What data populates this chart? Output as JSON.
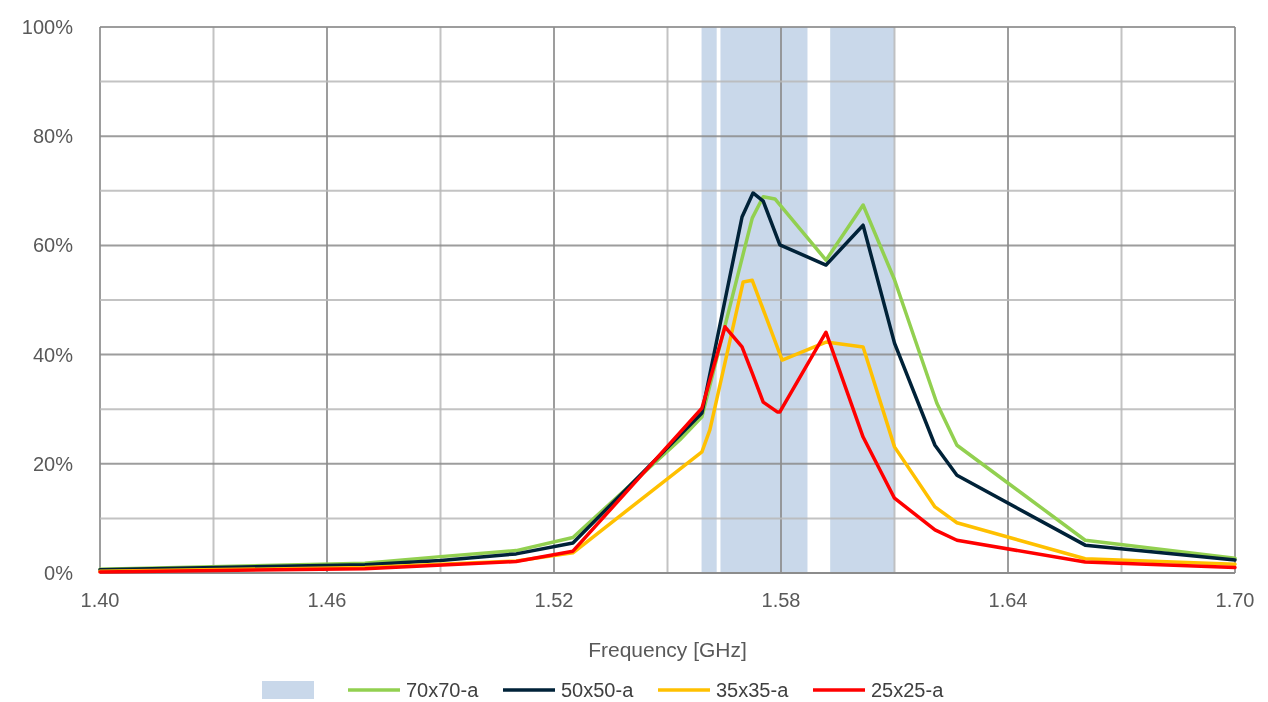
{
  "chart_data": {
    "type": "line",
    "xlabel": "Frequency [GHz]",
    "xlim": [
      1.4,
      1.7
    ],
    "xticks": [
      {
        "value": 1.4,
        "label": "1.40"
      },
      {
        "value": 1.43,
        "label": null
      },
      {
        "value": 1.46,
        "label": "1.46"
      },
      {
        "value": 1.49,
        "label": null
      },
      {
        "value": 1.52,
        "label": "1.52"
      },
      {
        "value": 1.55,
        "label": null
      },
      {
        "value": 1.58,
        "label": "1.58"
      },
      {
        "value": 1.61,
        "label": null
      },
      {
        "value": 1.64,
        "label": "1.64"
      },
      {
        "value": 1.67,
        "label": null
      },
      {
        "value": 1.7,
        "label": "1.70"
      }
    ],
    "ylim": [
      0,
      100
    ],
    "yticks": [
      {
        "value": 0,
        "label": "0%"
      },
      {
        "value": 10,
        "label": null
      },
      {
        "value": 20,
        "label": "20%"
      },
      {
        "value": 30,
        "label": null
      },
      {
        "value": 40,
        "label": "40%"
      },
      {
        "value": 50,
        "label": null
      },
      {
        "value": 60,
        "label": "60%"
      },
      {
        "value": 70,
        "label": null
      },
      {
        "value": 80,
        "label": "80%"
      },
      {
        "value": 90,
        "label": null
      },
      {
        "value": 100,
        "label": "100%"
      }
    ],
    "grid": true,
    "legend": "bottom",
    "line_style": "solid",
    "marker": "none",
    "bands": [
      {
        "axis": "x",
        "from": 1.559,
        "to": 1.563,
        "color": "#c9d8ea"
      },
      {
        "axis": "x",
        "from": 1.564,
        "to": 1.587,
        "color": "#c9d8ea"
      },
      {
        "axis": "x",
        "from": 1.593,
        "to": 1.61,
        "color": "#c9d8ea"
      }
    ],
    "series": [
      {
        "name": "70x70-a",
        "color": "#92d050",
        "x": [
          1.4,
          1.47,
          1.49,
          1.51,
          1.525,
          1.5533,
          1.5591,
          1.5724,
          1.5753,
          1.5784,
          1.5919,
          1.6017,
          1.61,
          1.6212,
          1.6265,
          1.6604,
          1.7
        ],
        "values": [
          0.7,
          1.8,
          3.0,
          4.1,
          6.5,
          24.4,
          28.6,
          65.0,
          68.9,
          68.5,
          57.3,
          67.4,
          53.7,
          31.1,
          23.4,
          6.0,
          2.7
        ]
      },
      {
        "name": "50x50-a",
        "color": "#002238",
        "x": [
          1.4,
          1.47,
          1.49,
          1.51,
          1.525,
          1.5591,
          1.5697,
          1.5726,
          1.5753,
          1.5797,
          1.5919,
          1.6017,
          1.61,
          1.6207,
          1.6265,
          1.6604,
          1.7
        ],
        "values": [
          0.6,
          1.5,
          2.3,
          3.5,
          5.5,
          29.3,
          65.2,
          69.6,
          68.1,
          60.1,
          56.4,
          63.7,
          42.1,
          23.4,
          17.9,
          5.1,
          2.4
        ]
      },
      {
        "name": "35x35-a",
        "color": "#ffc000",
        "x": [
          1.4,
          1.47,
          1.51,
          1.525,
          1.5591,
          1.5612,
          1.57,
          1.5724,
          1.5803,
          1.5919,
          1.6017,
          1.61,
          1.6207,
          1.6265,
          1.6604,
          1.7
        ],
        "values": [
          0.3,
          1.0,
          2.2,
          3.7,
          22.2,
          26.2,
          53.3,
          53.6,
          39.0,
          42.3,
          41.4,
          23.1,
          12.1,
          9.2,
          2.6,
          1.6
        ]
      },
      {
        "name": "25x25-a",
        "color": "#ff0000",
        "x": [
          1.4,
          1.47,
          1.51,
          1.525,
          1.5591,
          1.5652,
          1.5697,
          1.5724,
          1.5753,
          1.579,
          1.5797,
          1.5919,
          1.6017,
          1.61,
          1.6207,
          1.6265,
          1.6604,
          1.7
        ],
        "values": [
          0.2,
          0.8,
          2.1,
          4.0,
          30.2,
          45.1,
          41.4,
          36.6,
          31.3,
          29.5,
          29.5,
          44.1,
          24.9,
          13.7,
          7.9,
          6.0,
          2.0,
          1.0
        ]
      }
    ]
  }
}
